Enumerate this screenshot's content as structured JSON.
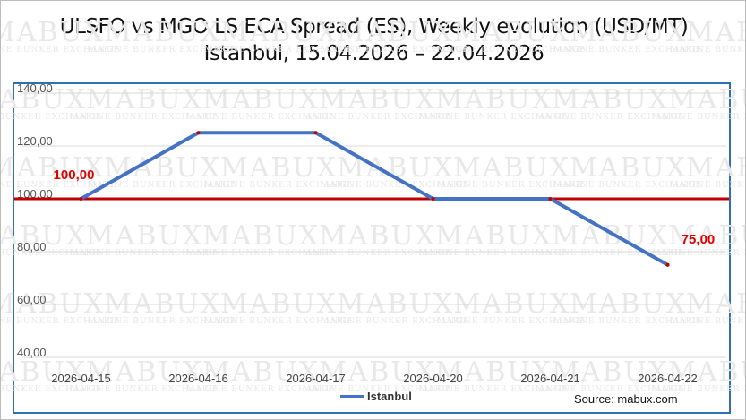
{
  "title_line1": "ULSFO vs MGO LS ECA Spread (ES), Weekly evolution (USD/MT)",
  "title_line2": "Istanbul, 15.04.2026 – 22.04.2026",
  "source": "Source: mabux.com",
  "watermark": {
    "brand": "MABUX",
    "sub": "MARINE BUNKER EXCHANGE"
  },
  "colors": {
    "series": "#4472c4",
    "reference": "#c00000",
    "frame": "#2e6fb5",
    "label": "#e00000"
  },
  "chart_data": {
    "type": "line",
    "categories": [
      "2026-04-15",
      "2026-04-16",
      "2026-04-17",
      "2026-04-20",
      "2026-04-21",
      "2026-04-22"
    ],
    "series": [
      {
        "name": "Istanbul",
        "values": [
          100,
          125,
          125,
          100,
          100,
          75
        ]
      }
    ],
    "reference_line": {
      "value": 100
    },
    "y_ticks": [
      "140,00",
      "120,00",
      "100,00",
      "80,00",
      "60,00",
      "40,00"
    ],
    "ylim": [
      40,
      140
    ],
    "data_labels": [
      {
        "index": 0,
        "text": "100,00"
      },
      {
        "index": 5,
        "text": "75,00"
      }
    ],
    "grid": true,
    "legend_position": "bottom"
  }
}
